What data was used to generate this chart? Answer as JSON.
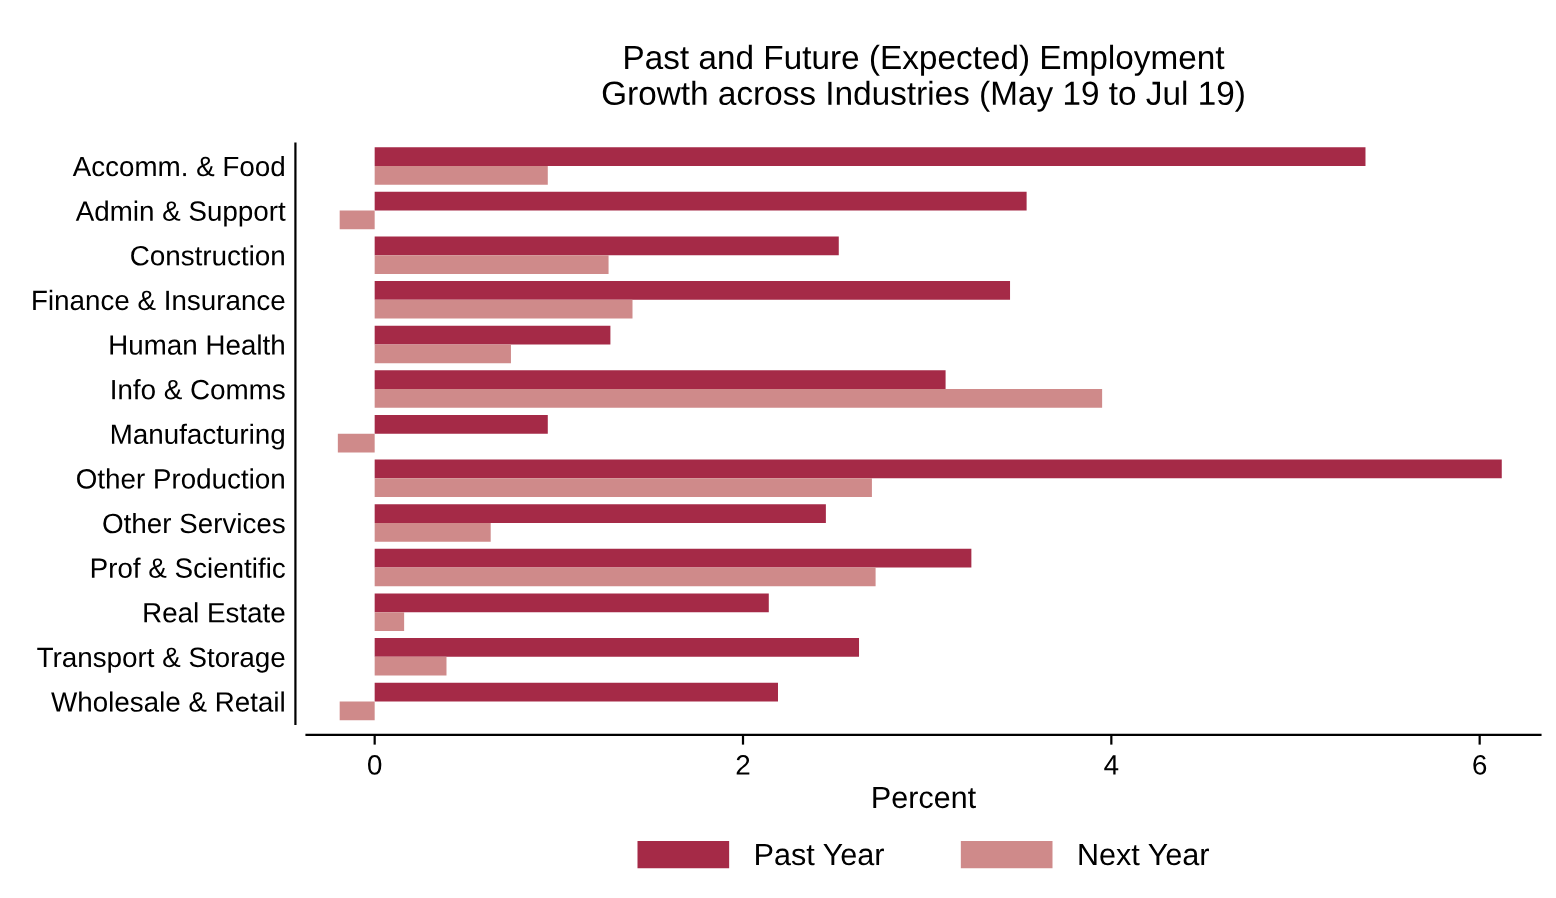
{
  "chart_data": {
    "type": "bar",
    "orientation": "horizontal",
    "title": "Past and Future (Expected) Employment\nGrowth across Industries (May 19 to Jul 19)",
    "xlabel": "Percent",
    "categories": [
      "Accomm. & Food",
      "Admin & Support",
      "Construction",
      "Finance & Insurance",
      "Human Health",
      "Info & Comms",
      "Manufacturing",
      "Other Production",
      "Other Services",
      "Prof & Scientific",
      "Real Estate",
      "Transport & Storage",
      "Wholesale & Retail"
    ],
    "series": [
      {
        "name": "Past Year",
        "color": "#a52a47",
        "values": [
          5.38,
          3.54,
          2.52,
          3.45,
          1.28,
          3.1,
          0.94,
          6.12,
          2.45,
          3.24,
          2.14,
          2.63,
          2.19
        ]
      },
      {
        "name": "Next Year",
        "color": "#cf8a8a",
        "values": [
          0.94,
          -0.19,
          1.27,
          1.4,
          0.74,
          3.95,
          -0.2,
          2.7,
          0.63,
          2.72,
          0.16,
          0.39,
          -0.19
        ]
      }
    ],
    "xlim": [
      -0.37,
      6.33
    ],
    "xticks": [
      0,
      2,
      4,
      6
    ],
    "grid": false,
    "legend": "bottom"
  }
}
